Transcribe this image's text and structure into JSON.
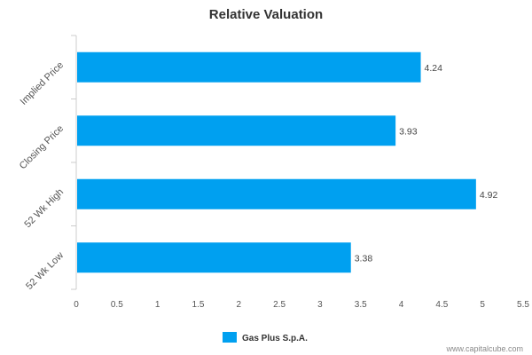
{
  "colors": {
    "bar": "#00A0F0",
    "axis": "#cccccc",
    "text": "#555555"
  },
  "footer": {
    "watermark": "www.capitalcube.com"
  },
  "chart_data": {
    "type": "bar",
    "orientation": "horizontal",
    "title": "Relative Valuation",
    "categories": [
      "Implied Price",
      "Closing Price",
      "52 Wk High",
      "52 Wk Low"
    ],
    "series": [
      {
        "name": "Gas Plus S.p.A.",
        "values": [
          4.24,
          3.93,
          4.92,
          3.38
        ]
      }
    ],
    "data_labels": [
      "4.24",
      "3.93",
      "4.92",
      "3.38"
    ],
    "xlim": [
      0,
      5.5
    ],
    "xticks": [
      0,
      0.5,
      1,
      1.5,
      2,
      2.5,
      3,
      3.5,
      4,
      4.5,
      5,
      5.5
    ],
    "xtick_labels": [
      "0",
      "0.5",
      "1",
      "1.5",
      "2",
      "2.5",
      "3",
      "3.5",
      "4",
      "4.5",
      "5",
      "5.5"
    ],
    "xlabel": "",
    "ylabel": "",
    "grid": false,
    "legend_position": "bottom-center"
  }
}
